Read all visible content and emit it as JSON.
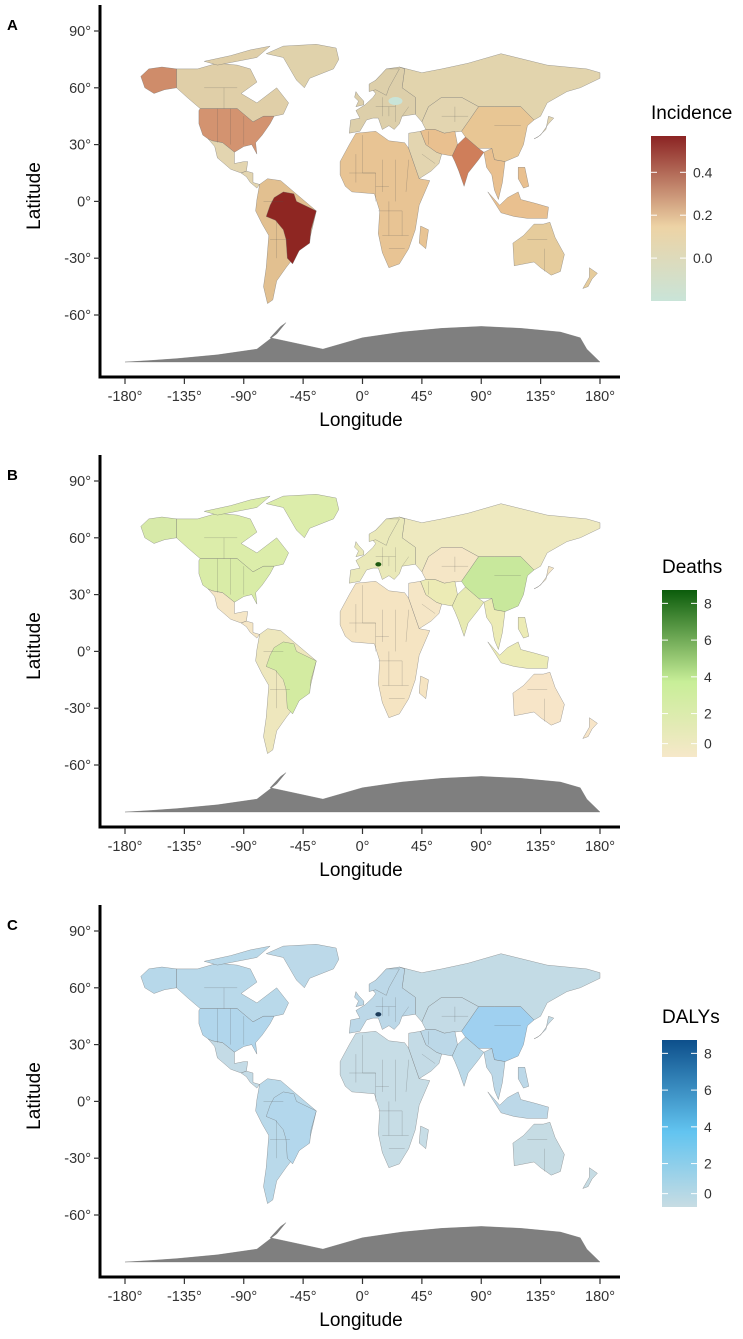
{
  "panels": [
    {
      "letter": "A",
      "legend_title": "Incidence",
      "legend_ticks": [
        "0.4",
        "0.2",
        "0.0"
      ],
      "colors": {
        "low": "#c9e4d8",
        "mid": "#edd3a5",
        "high": "#8b2323",
        "base": "#e3d5b0",
        "africa": "#e8c494",
        "southasia": "#e9c08f",
        "usa": "#d39370",
        "alaska": "#cf8c6a",
        "canada": "#e0cfa8",
        "russia": "#e2d4ad",
        "brazil": "#8e2622",
        "india": "#cf7e5a",
        "china": "#e8c694",
        "australia": "#e6cc9c",
        "s_america": "#e2c090",
        "europe": "#ddcfaa",
        "greenland": "#e0d2ab",
        "antarctica": "#7f7f7f",
        "hotspot": "#c9e4d8"
      }
    },
    {
      "letter": "B",
      "legend_title": "Deaths",
      "legend_ticks": [
        "8",
        "6",
        "4",
        "2",
        "0"
      ],
      "colors": {
        "low": "#f6e8c9",
        "mid": "#c8ee98",
        "high": "#0b5c0b",
        "base": "#f5e6c6",
        "africa": "#f5e4c2",
        "southasia": "#ecebb5",
        "usa": "#d9eca7",
        "alaska": "#d7eaa8",
        "canada": "#dcedaa",
        "russia": "#eee9bf",
        "brazil": "#d3eba1",
        "india": "#e7eab2",
        "china": "#c8e89c",
        "australia": "#f7e5c8",
        "s_america": "#eee7bd",
        "europe": "#eae9b9",
        "greenland": "#dcedaa",
        "antarctica": "#7f7f7f",
        "hotspot": "#1d5a10"
      }
    },
    {
      "letter": "C",
      "legend_title": "DALYs",
      "legend_ticks": [
        "8",
        "6",
        "4",
        "2",
        "0"
      ],
      "colors": {
        "low": "#c7dce3",
        "mid": "#62c4f0",
        "high": "#0d4f8b",
        "base": "#c4dbe6",
        "africa": "#c7dde6",
        "southasia": "#bcd8e8",
        "usa": "#b1d6ec",
        "alaska": "#b7d8ea",
        "canada": "#b9d9ea",
        "russia": "#c3dbe5",
        "brazil": "#b3d7ec",
        "india": "#bad9e9",
        "china": "#9fd0f0",
        "australia": "#c6dce4",
        "s_america": "#b9d9ea",
        "europe": "#bcd8e8",
        "greenland": "#bcd9e9",
        "antarctica": "#7f7f7f",
        "hotspot": "#1d3c5a"
      }
    }
  ],
  "axes": {
    "xlabel": "Longitude",
    "ylabel": "Latitude",
    "x_ticks": [
      "-180°",
      "-135°",
      "-90°",
      "-45°",
      "0°",
      "45°",
      "90°",
      "135°",
      "180°"
    ],
    "y_ticks": [
      "90°",
      "60°",
      "30°",
      "0°",
      "-30°",
      "-60°"
    ]
  }
}
